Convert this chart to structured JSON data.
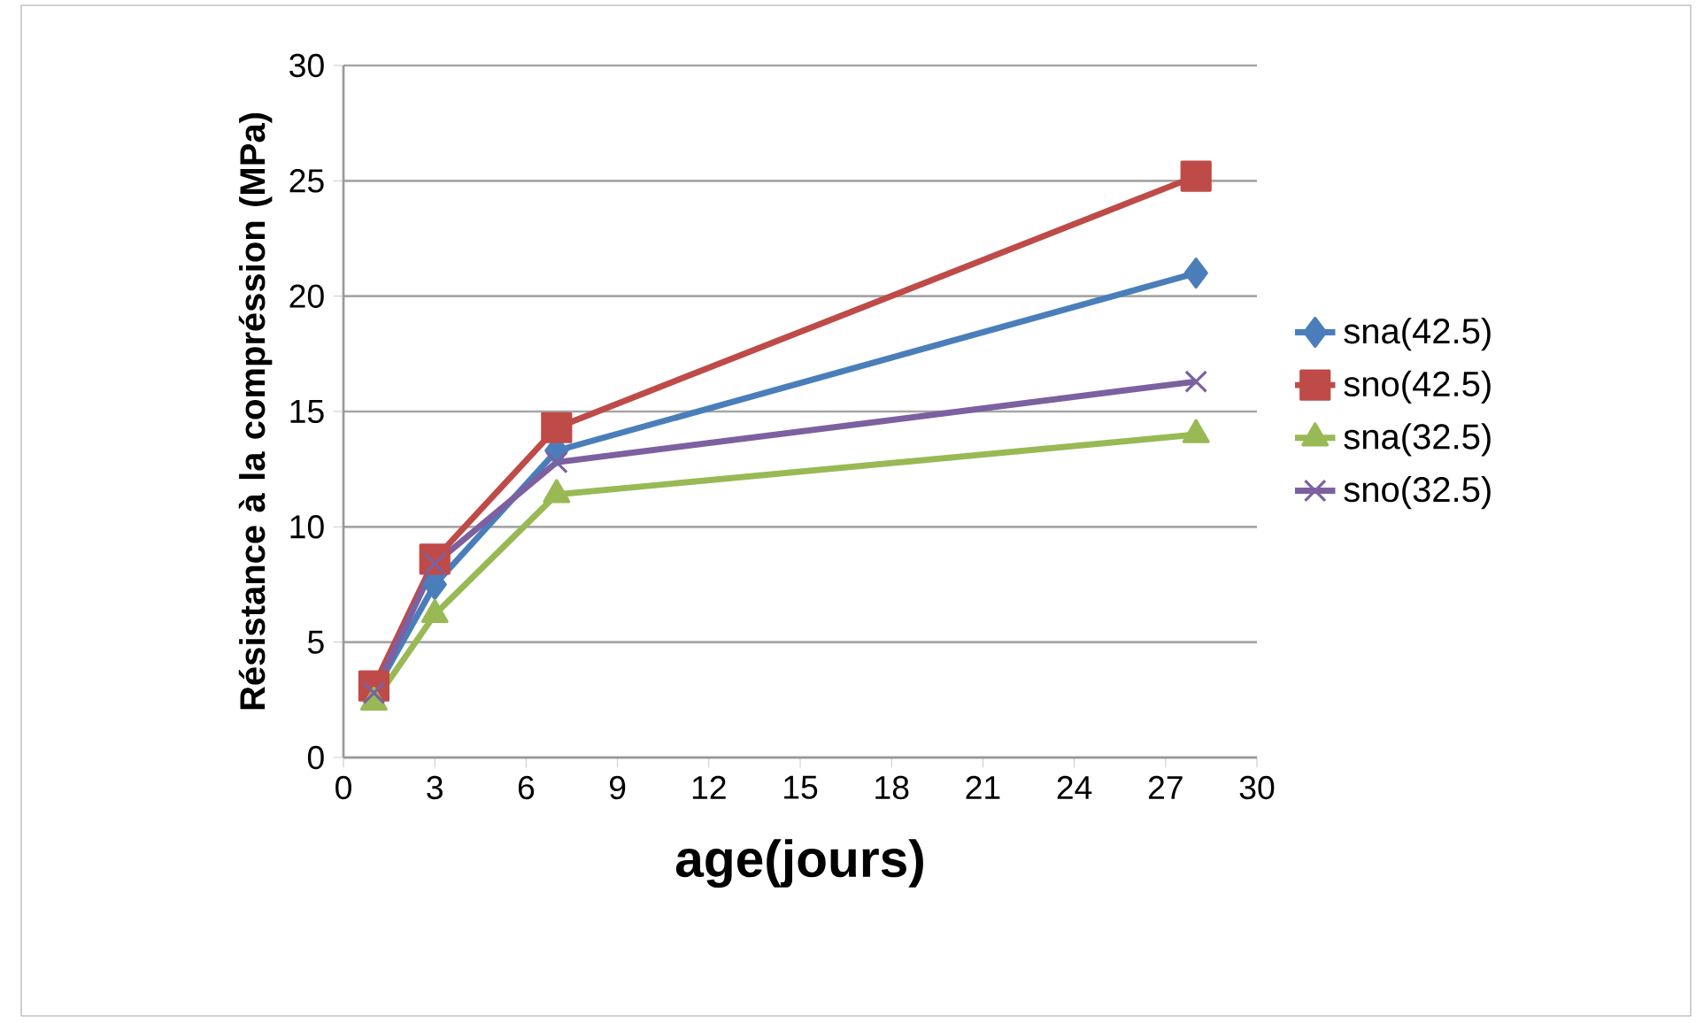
{
  "chart_data": {
    "type": "line",
    "xlabel": "age(jours)",
    "ylabel": "Résistance à la compréssion (MPa)",
    "x": [
      1,
      3,
      7,
      28
    ],
    "series": [
      {
        "name": "sna(42.5)",
        "color": "#4a7ebb",
        "marker": "diamond",
        "values": [
          2.8,
          7.5,
          13.3,
          21
        ]
      },
      {
        "name": "sno(42.5)",
        "color": "#be4b48",
        "marker": "square",
        "values": [
          3.1,
          8.6,
          14.3,
          25.2
        ]
      },
      {
        "name": "sna(32.5)",
        "color": "#98b954",
        "marker": "triangle",
        "values": [
          2.4,
          6.2,
          11.4,
          14
        ]
      },
      {
        "name": "sno(32.5)",
        "color": "#7d60a0",
        "marker": "cross",
        "values": [
          2.8,
          8.4,
          12.8,
          16.3
        ]
      }
    ],
    "xlim": [
      0,
      30
    ],
    "xticks": [
      0,
      3,
      6,
      9,
      12,
      15,
      18,
      21,
      24,
      27,
      30
    ],
    "ylim": [
      0,
      30
    ],
    "yticks": [
      0,
      5,
      10,
      15,
      20,
      25,
      30
    ],
    "grid": "y",
    "legend": "right"
  }
}
